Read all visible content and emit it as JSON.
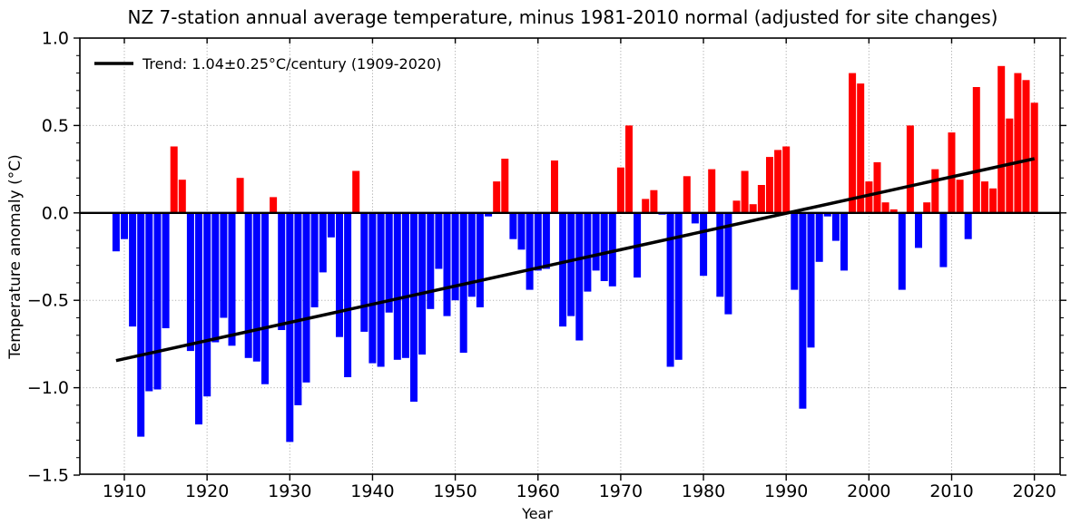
{
  "title": "NZ 7-station annual average temperature, minus 1981-2010 normal (adjusted for site changes)",
  "legend": {
    "label": "Trend: 1.04±0.25°C/century (1909-2020)"
  },
  "axes": {
    "xlabel": "Year",
    "ylabel": "Temperature anomaly (°C)",
    "x_ticks": [
      1910,
      1920,
      1930,
      1940,
      1950,
      1960,
      1970,
      1980,
      1990,
      2000,
      2010,
      2020
    ],
    "y_ticks": [
      {
        "v": 1.0,
        "label": "1.0"
      },
      {
        "v": 0.5,
        "label": "0.5"
      },
      {
        "v": 0.0,
        "label": "0.0"
      },
      {
        "v": -0.5,
        "label": "−0.5"
      },
      {
        "v": -1.0,
        "label": "−1.0"
      },
      {
        "v": -1.5,
        "label": "−1.5"
      }
    ],
    "ylim": [
      -1.5,
      1.0
    ],
    "grid": "dotted"
  },
  "colors": {
    "positive": "#ff0000",
    "negative": "#0000ff",
    "trend": "#000000",
    "grid": "#b0b0b0",
    "axis": "#000000",
    "background": "#ffffff"
  },
  "chart_data": {
    "type": "bar",
    "title": "NZ 7-station annual average temperature, minus 1981-2010 normal (adjusted for site changes)",
    "xlabel": "Year",
    "ylabel": "Temperature anomaly (°C)",
    "ylim": [
      -1.5,
      1.0
    ],
    "x_range": [
      1909,
      2020
    ],
    "legend_position": "upper left",
    "years": [
      1909,
      1910,
      1911,
      1912,
      1913,
      1914,
      1915,
      1916,
      1917,
      1918,
      1919,
      1920,
      1921,
      1922,
      1923,
      1924,
      1925,
      1926,
      1927,
      1928,
      1929,
      1930,
      1931,
      1932,
      1933,
      1934,
      1935,
      1936,
      1937,
      1938,
      1939,
      1940,
      1941,
      1942,
      1943,
      1944,
      1945,
      1946,
      1947,
      1948,
      1949,
      1950,
      1951,
      1952,
      1953,
      1954,
      1955,
      1956,
      1957,
      1958,
      1959,
      1960,
      1961,
      1962,
      1963,
      1964,
      1965,
      1966,
      1967,
      1968,
      1969,
      1970,
      1971,
      1972,
      1973,
      1974,
      1975,
      1976,
      1977,
      1978,
      1979,
      1980,
      1981,
      1982,
      1983,
      1984,
      1985,
      1986,
      1987,
      1988,
      1989,
      1990,
      1991,
      1992,
      1993,
      1994,
      1995,
      1996,
      1997,
      1998,
      1999,
      2000,
      2001,
      2002,
      2003,
      2004,
      2005,
      2006,
      2007,
      2008,
      2009,
      2010,
      2011,
      2012,
      2013,
      2014,
      2015,
      2016,
      2017,
      2018,
      2019,
      2020
    ],
    "values": [
      -0.22,
      -0.15,
      -0.65,
      -1.28,
      -1.02,
      -1.01,
      -0.66,
      0.38,
      0.19,
      -0.79,
      -1.21,
      -1.05,
      -0.74,
      -0.6,
      -0.76,
      0.2,
      -0.83,
      -0.85,
      -0.98,
      0.09,
      -0.67,
      -1.31,
      -1.1,
      -0.97,
      -0.54,
      -0.34,
      -0.14,
      -0.71,
      -0.94,
      0.24,
      -0.68,
      -0.86,
      -0.88,
      -0.57,
      -0.84,
      -0.83,
      -1.08,
      -0.81,
      -0.55,
      -0.32,
      -0.59,
      -0.5,
      -0.8,
      -0.48,
      -0.54,
      -0.02,
      0.18,
      0.31,
      -0.15,
      -0.21,
      -0.44,
      -0.33,
      -0.32,
      0.3,
      -0.65,
      -0.59,
      -0.73,
      -0.45,
      -0.33,
      -0.39,
      -0.42,
      0.26,
      0.5,
      -0.37,
      0.08,
      0.13,
      -0.01,
      -0.88,
      -0.84,
      0.21,
      -0.06,
      -0.36,
      0.25,
      -0.48,
      -0.58,
      0.07,
      0.24,
      0.05,
      0.16,
      0.32,
      0.36,
      0.38,
      -0.44,
      -1.12,
      -0.77,
      -0.28,
      -0.02,
      -0.16,
      -0.33,
      0.8,
      0.74,
      0.18,
      0.29,
      0.06,
      0.02,
      -0.44,
      0.5,
      -0.2,
      0.06,
      0.25,
      -0.31,
      0.46,
      0.19,
      -0.15,
      0.72,
      0.18,
      0.14,
      0.84,
      0.54,
      0.8,
      0.76,
      0.63
    ],
    "trend": {
      "rate": "1.04±0.25°C/century",
      "period": "1909-2020",
      "start": {
        "year": 1909,
        "value": -0.845
      },
      "end": {
        "year": 2020,
        "value": 0.31
      }
    }
  }
}
